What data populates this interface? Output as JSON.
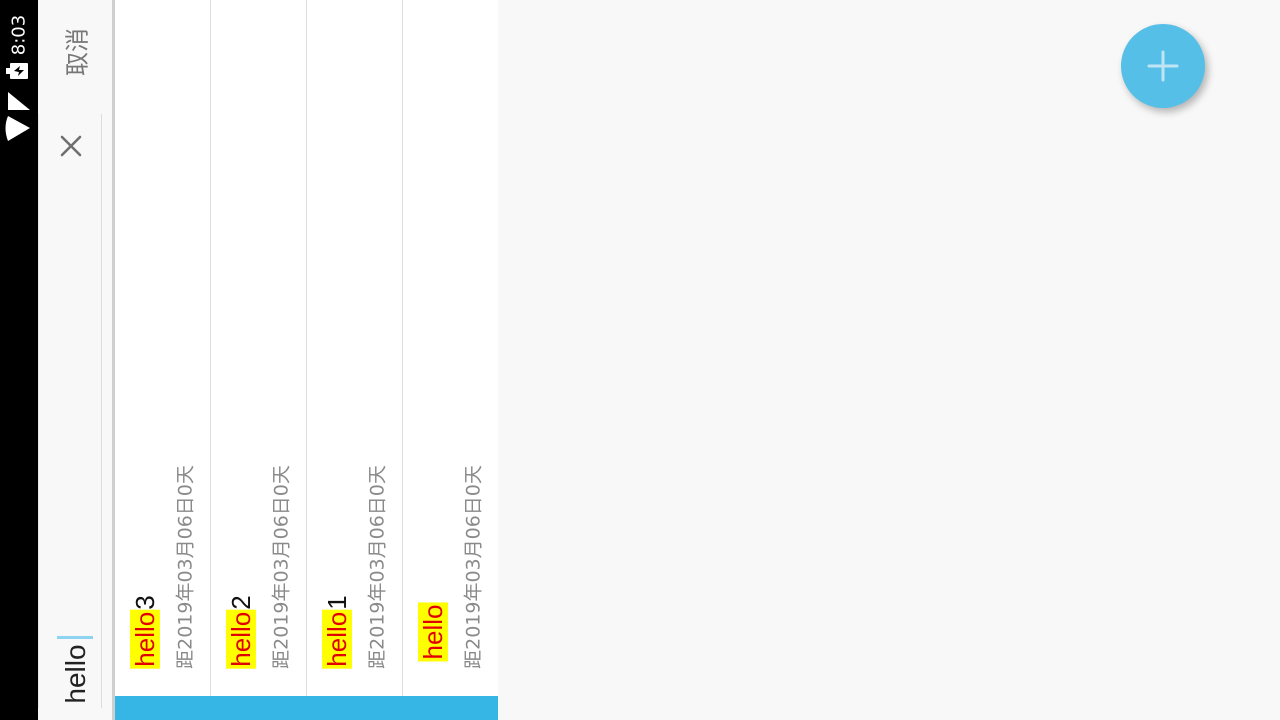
{
  "status_bar": {
    "time": "8:03",
    "icons": [
      "battery-charging-icon",
      "signal-icon",
      "wifi-icon"
    ]
  },
  "search": {
    "cancel_label": "取消",
    "query": "hello",
    "clear_icon": "close-icon"
  },
  "results": [
    {
      "highlight": "hello",
      "rest": "3",
      "subtitle": "距2019年03月06日0天"
    },
    {
      "highlight": "hello",
      "rest": "2",
      "subtitle": "距2019年03月06日0天"
    },
    {
      "highlight": "hello",
      "rest": "1",
      "subtitle": "距2019年03月06日0天"
    },
    {
      "highlight": "hello",
      "rest": "",
      "subtitle": "距2019年03月06日0天"
    }
  ],
  "fab": {
    "icon": "plus-icon"
  },
  "colors": {
    "accent": "#35b6e5",
    "fab": "#55bfe8",
    "highlight_bg": "#ffff00",
    "highlight_text": "#e00000"
  }
}
